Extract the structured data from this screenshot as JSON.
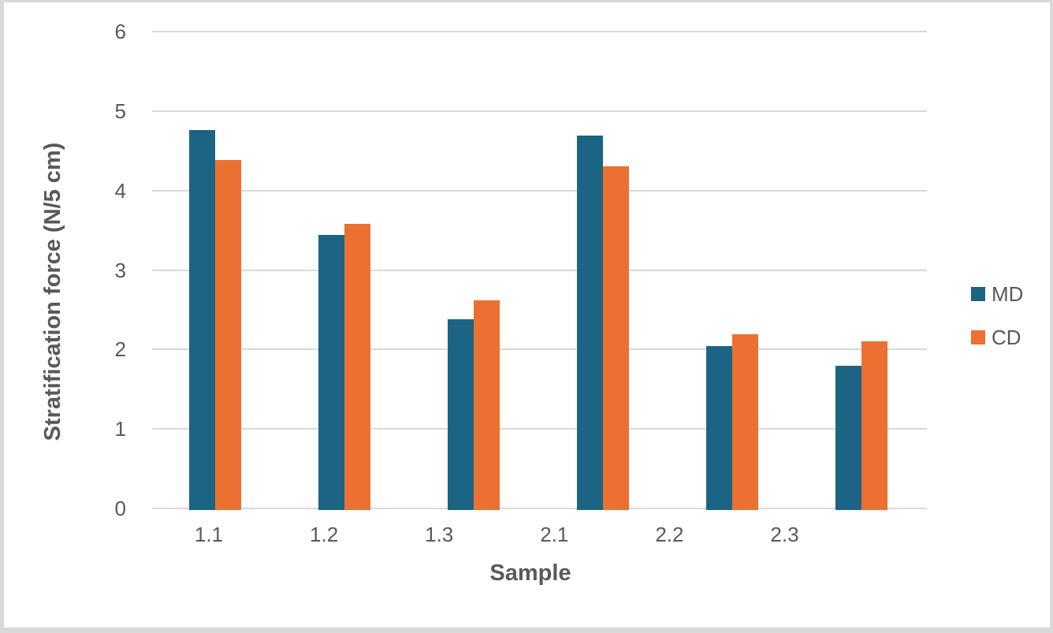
{
  "window": {
    "background": "#ffffff",
    "frame_color": "#d9d9d9"
  },
  "chart_data": {
    "type": "bar",
    "title": "",
    "categories": [
      "1.1",
      "1.2",
      "1.3",
      "2.1",
      "2.2",
      "2.3"
    ],
    "series": [
      {
        "name": "MD",
        "color": "#1C6484",
        "values": [
          4.76,
          3.44,
          2.38,
          4.69,
          2.04,
          1.8
        ]
      },
      {
        "name": "CD",
        "color": "#EB7031",
        "values": [
          4.38,
          3.58,
          2.62,
          4.31,
          2.19,
          2.1
        ]
      }
    ],
    "xlabel": "Sample",
    "ylabel": "Stratification force (N/5 cm)",
    "ylim": [
      0,
      6
    ],
    "yticks": [
      0,
      1,
      2,
      3,
      4,
      5,
      6
    ],
    "grid": true,
    "legend_position": "right",
    "text_color": "#595959",
    "gridline_color": "#d9d9d9"
  }
}
